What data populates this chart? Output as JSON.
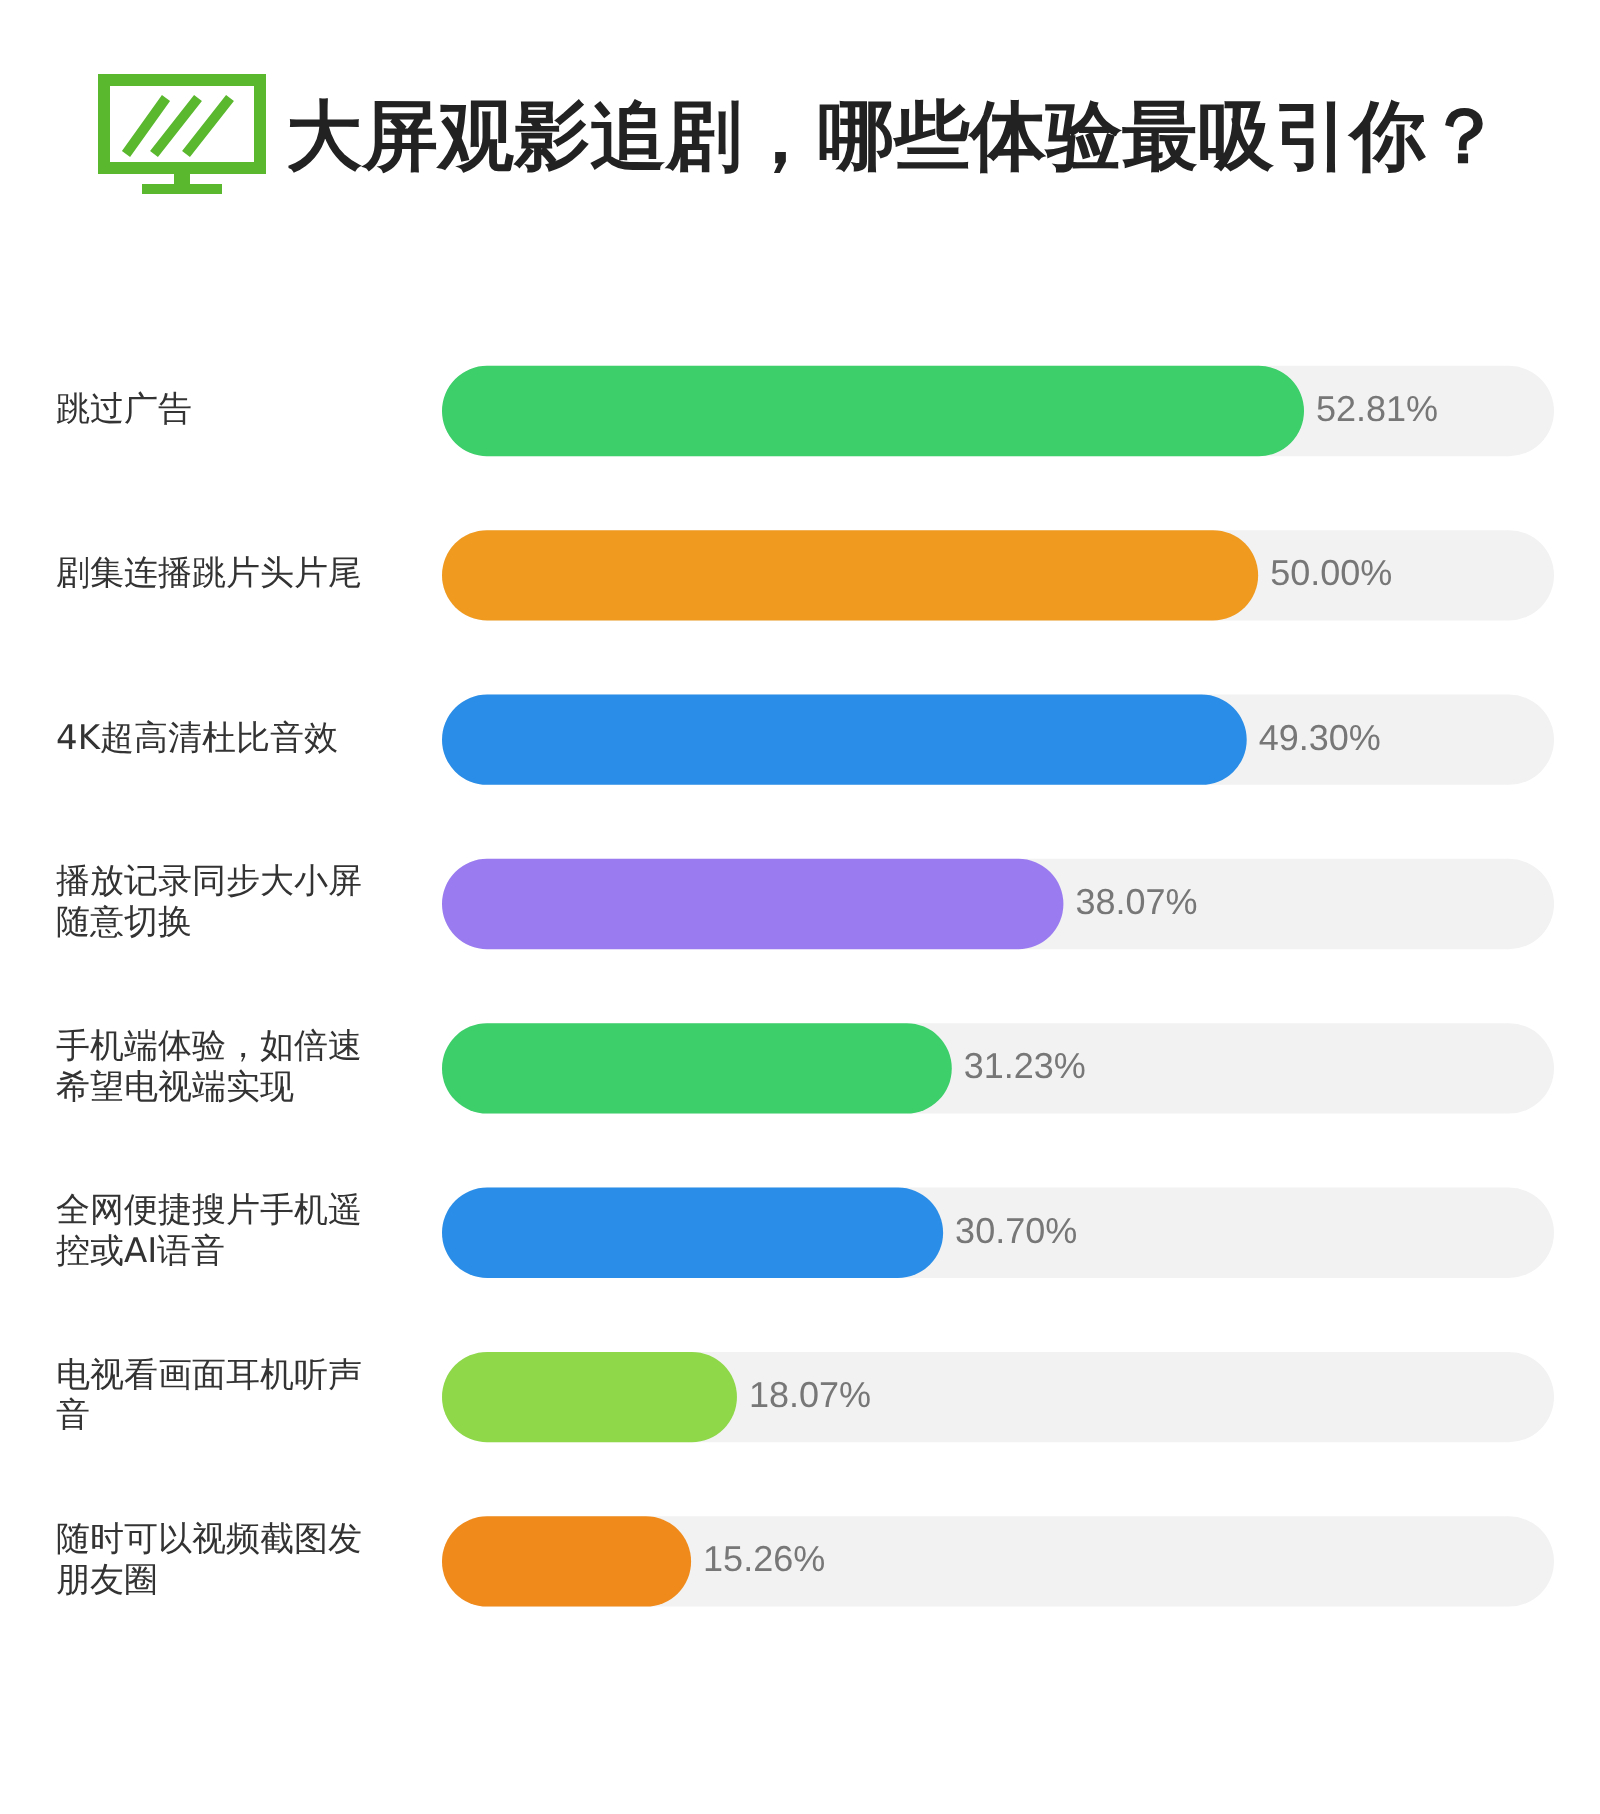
{
  "chart_data": {
    "type": "bar",
    "orientation": "horizontal",
    "title": "大屏观影追剧，哪些体验最吸引你？",
    "categories": [
      "跳过广告",
      "剧集连播跳片头片尾",
      "4K超高清杜比音效",
      "播放记录同步大小屏随意切换",
      "手机端体验，如倍速希望电视端实现",
      "全网便捷搜片手机遥控或AI语音",
      "电视看画面耳机听声音",
      "随时可以视频截图发朋友圈"
    ],
    "values": [
      52.81,
      50.0,
      49.3,
      38.07,
      31.23,
      30.7,
      18.07,
      15.26
    ],
    "value_labels": [
      "52.81%",
      "50.00%",
      "49.30%",
      "38.07%",
      "31.23%",
      "30.70%",
      "18.07%",
      "15.26%"
    ],
    "colors": [
      "#3ccf6a",
      "#f09a20",
      "#2a8ee8",
      "#9a7cf0",
      "#3ccf6a",
      "#2a8ee8",
      "#8ed84a",
      "#f08a1a"
    ],
    "grid": false,
    "legend": false
  }
}
